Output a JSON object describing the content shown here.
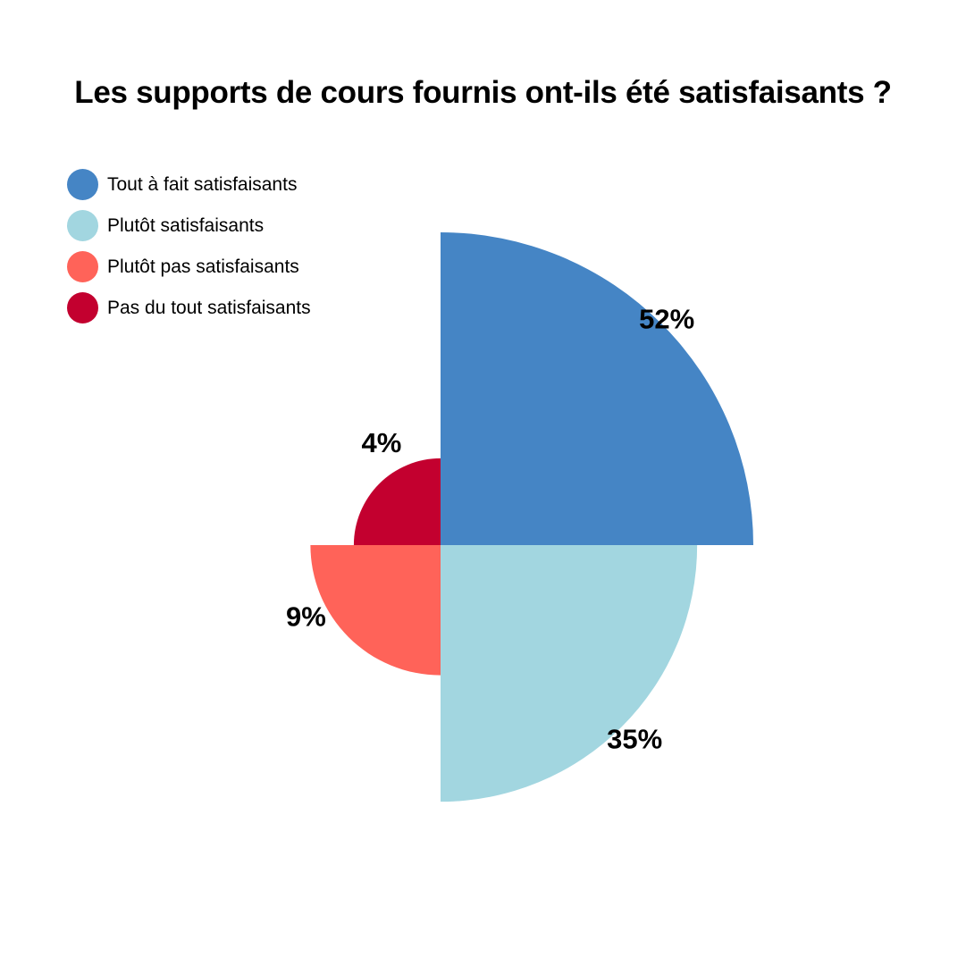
{
  "chart_data": {
    "type": "pie",
    "title": "Les supports de cours fournis ont-ils été satisfaisants ?",
    "variant": "quarter-radial",
    "categories": [
      "Tout à fait satisfaisants",
      "Plutôt satisfaisants",
      "Plutôt pas satisfaisants",
      "Pas du tout satisfaisants"
    ],
    "values": [
      52,
      35,
      9,
      4
    ],
    "labels": [
      "52%",
      "35%",
      "9%",
      "4%"
    ],
    "colors": [
      "#4585C5",
      "#A2D6E0",
      "#FF6359",
      "#C3002F"
    ],
    "legend_position": "top-left"
  }
}
